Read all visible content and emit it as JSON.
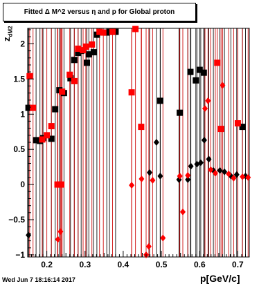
{
  "title": "Fitted Δ M^2 versus η and p for Global proton",
  "timestamp": "Wed Jun  7 18:16:14 2017",
  "chart_data": {
    "type": "scatter",
    "title": "Fitted Δ M^2 versus η and p for Global proton",
    "xlabel": "p[GeV/c]",
    "ylabel": "z",
    "ylabel_sub": "dM2",
    "xlim": [
      0.15,
      0.73
    ],
    "ylim": [
      -1.03,
      2.22
    ],
    "x_ticks": [
      0.2,
      0.3,
      0.4,
      0.5,
      0.6,
      0.7
    ],
    "x_tick_labels": [
      "0.2",
      "0.3",
      "0.4",
      "0.5",
      "0.6",
      "0.7"
    ],
    "y_ticks": [
      -1,
      -0.5,
      0,
      0.5,
      1,
      1.5,
      2
    ],
    "y_tick_labels": [
      "−1",
      "−0.5",
      "0",
      "0.5",
      "1",
      "1.5",
      "2"
    ],
    "grid": false,
    "colors": {
      "black": "#000000",
      "red": "#ff0000",
      "error_red": "#cc0000"
    },
    "series": [
      {
        "marker": "square",
        "color": "#000000",
        "points": [
          {
            "x": 0.152,
            "y": 1.09
          },
          {
            "x": 0.172,
            "y": 0.63
          },
          {
            "x": 0.182,
            "y": 0.62
          },
          {
            "x": 0.19,
            "y": 0.66
          },
          {
            "x": 0.212,
            "y": 0.65
          },
          {
            "x": 0.222,
            "y": 1.07
          },
          {
            "x": 0.233,
            "y": 1.34
          },
          {
            "x": 0.245,
            "y": 1.3
          },
          {
            "x": 0.262,
            "y": 1.51
          },
          {
            "x": 0.272,
            "y": 1.77
          },
          {
            "x": 0.282,
            "y": 1.87
          },
          {
            "x": 0.29,
            "y": 1.9
          },
          {
            "x": 0.305,
            "y": 1.73
          },
          {
            "x": 0.31,
            "y": 1.85
          },
          {
            "x": 0.323,
            "y": 1.88
          },
          {
            "x": 0.331,
            "y": 2.13
          },
          {
            "x": 0.357,
            "y": 2.16
          },
          {
            "x": 0.364,
            "y": 2.17
          },
          {
            "x": 0.38,
            "y": 2.17
          },
          {
            "x": 0.497,
            "y": 1.19
          },
          {
            "x": 0.548,
            "y": 1.02
          },
          {
            "x": 0.576,
            "y": 1.6
          },
          {
            "x": 0.59,
            "y": 1.48
          },
          {
            "x": 0.6,
            "y": 1.63
          },
          {
            "x": 0.611,
            "y": 1.59
          },
          {
            "x": 0.712,
            "y": 0.82
          }
        ]
      },
      {
        "marker": "square",
        "color": "#ff0000",
        "points": [
          {
            "x": 0.155,
            "y": 1.54
          },
          {
            "x": 0.164,
            "y": 1.09
          },
          {
            "x": 0.188,
            "y": 0.64
          },
          {
            "x": 0.2,
            "y": 0.7
          },
          {
            "x": 0.212,
            "y": 0.83
          },
          {
            "x": 0.228,
            "y": 0.0
          },
          {
            "x": 0.238,
            "y": 0.0
          },
          {
            "x": 0.24,
            "y": 1.32
          },
          {
            "x": 0.26,
            "y": 1.56
          },
          {
            "x": 0.272,
            "y": 1.47
          },
          {
            "x": 0.282,
            "y": 1.93
          },
          {
            "x": 0.295,
            "y": 1.91
          },
          {
            "x": 0.302,
            "y": 1.96
          },
          {
            "x": 0.318,
            "y": 1.99
          },
          {
            "x": 0.338,
            "y": 2.17
          },
          {
            "x": 0.348,
            "y": 2.16
          },
          {
            "x": 0.372,
            "y": 2.17
          },
          {
            "x": 0.422,
            "y": 1.31
          },
          {
            "x": 0.432,
            "y": 2.21
          },
          {
            "x": 0.447,
            "y": 0.82
          },
          {
            "x": 0.646,
            "y": 1.73
          },
          {
            "x": 0.656,
            "y": 0.79
          },
          {
            "x": 0.7,
            "y": 0.87
          }
        ]
      },
      {
        "marker": "diamond",
        "color": "#000000",
        "points": [
          {
            "x": 0.152,
            "y": -0.72
          },
          {
            "x": 0.469,
            "y": 0.17
          },
          {
            "x": 0.487,
            "y": 0.6
          },
          {
            "x": 0.497,
            "y": 0.12
          },
          {
            "x": 0.546,
            "y": 0.07
          },
          {
            "x": 0.569,
            "y": 0.07
          },
          {
            "x": 0.577,
            "y": 0.26
          },
          {
            "x": 0.593,
            "y": 0.29
          },
          {
            "x": 0.603,
            "y": 0.31
          },
          {
            "x": 0.612,
            "y": 0.63
          },
          {
            "x": 0.624,
            "y": 0.36
          },
          {
            "x": 0.636,
            "y": 0.2
          },
          {
            "x": 0.653,
            "y": 0.2
          },
          {
            "x": 0.665,
            "y": 0.18
          },
          {
            "x": 0.682,
            "y": 0.12
          },
          {
            "x": 0.697,
            "y": 0.14
          },
          {
            "x": 0.72,
            "y": 0.12
          }
        ]
      },
      {
        "marker": "diamond",
        "color": "#ff0000",
        "points": [
          {
            "x": 0.229,
            "y": -0.78
          },
          {
            "x": 0.236,
            "y": -0.67
          },
          {
            "x": 0.422,
            "y": -0.01
          },
          {
            "x": 0.448,
            "y": 0.08
          },
          {
            "x": 0.46,
            "y": -1.0
          },
          {
            "x": 0.467,
            "y": -0.88
          },
          {
            "x": 0.477,
            "y": 0.06
          },
          {
            "x": 0.504,
            "y": -0.76
          },
          {
            "x": 0.548,
            "y": 0.12
          },
          {
            "x": 0.556,
            "y": -0.39
          },
          {
            "x": 0.569,
            "y": 0.13
          },
          {
            "x": 0.614,
            "y": 1.08
          },
          {
            "x": 0.622,
            "y": 1.19
          },
          {
            "x": 0.629,
            "y": 0.21
          },
          {
            "x": 0.641,
            "y": 0.16
          },
          {
            "x": 0.66,
            "y": 1.41
          },
          {
            "x": 0.676,
            "y": 0.15
          },
          {
            "x": 0.689,
            "y": 0.09
          },
          {
            "x": 0.712,
            "y": 0.11
          },
          {
            "x": 0.727,
            "y": 0.1
          }
        ]
      }
    ]
  }
}
